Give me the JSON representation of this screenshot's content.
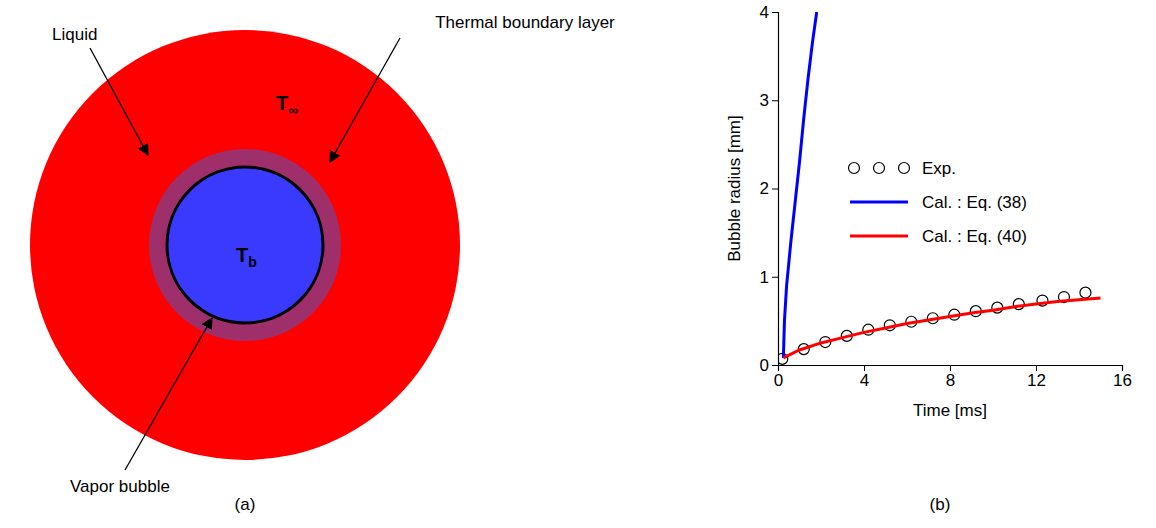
{
  "panel_labels": [
    "(a)",
    "(b)"
  ],
  "diagram": {
    "liquid": {
      "label": "Liquid",
      "temperature": {
        "symbol": "T",
        "subscript": "∞"
      }
    },
    "boundary_layer": {
      "label": "Thermal boundary layer"
    },
    "bubble": {
      "label": "Vapor bubble",
      "temperature": {
        "symbol": "T",
        "subscript": "b"
      }
    }
  },
  "chart_data": {
    "type": "line",
    "x_label": "Time [ms]",
    "y_label": "Bubble radius [mm]",
    "xlim": [
      0,
      16
    ],
    "xticks": [
      0,
      4,
      8,
      12,
      16
    ],
    "ylim": [
      0,
      4
    ],
    "yticks": [
      0,
      1,
      2,
      3,
      4
    ],
    "grid": false,
    "legend": "upper right",
    "series": [
      {
        "name": "Exp.",
        "type": "scatter",
        "marker": "circle",
        "color": "#000000",
        "x": [
          0.2,
          1.2,
          2.2,
          3.2,
          4.2,
          5.2,
          6.2,
          7.2,
          8.2,
          9.2,
          10.2,
          11.2,
          12.3,
          13.3,
          14.3
        ],
        "values": [
          0.07,
          0.18,
          0.26,
          0.33,
          0.4,
          0.45,
          0.49,
          0.53,
          0.57,
          0.61,
          0.65,
          0.69,
          0.73,
          0.77,
          0.82
        ]
      },
      {
        "name": "Cal. : Eq. (38)",
        "type": "line",
        "line_style": "solid",
        "color": "#0000ff",
        "x": [
          0.25,
          0.3,
          0.4,
          0.6,
          0.8,
          1.0,
          1.2,
          1.4,
          1.6,
          1.8
        ],
        "values": [
          0.08,
          0.5,
          0.9,
          1.4,
          1.85,
          2.3,
          2.8,
          3.25,
          3.65,
          4.0
        ]
      },
      {
        "name": "Cal. : Eq. (40)",
        "type": "line",
        "line_style": "solid",
        "color": "#ff0000",
        "x": [
          0.25,
          1,
          2,
          3,
          4,
          5,
          6,
          7,
          8,
          9,
          10,
          11,
          12,
          13,
          14,
          15
        ],
        "values": [
          0.08,
          0.17,
          0.25,
          0.31,
          0.37,
          0.42,
          0.47,
          0.51,
          0.55,
          0.59,
          0.62,
          0.66,
          0.69,
          0.72,
          0.74,
          0.76
        ]
      }
    ]
  }
}
